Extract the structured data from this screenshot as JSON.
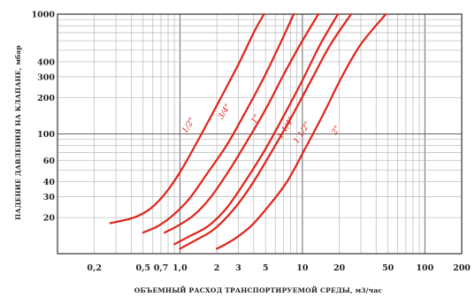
{
  "chart_data": {
    "type": "line",
    "title": "",
    "xlabel": "ОБЪЕМНЫЙ РАСХОД ТРАНСПОРТИРУЕМОЙ СРЕДЫ, м3/час",
    "ylabel": "ПАДЕНИЕ ДАВЛЕНИЯ НА КЛАПАНЕ, мбар",
    "x_scale": "log",
    "y_scale": "log",
    "xlim": [
      0.1,
      200
    ],
    "ylim": [
      10,
      1000
    ],
    "grid": true,
    "x_ticks": [
      "0,2",
      "0,5",
      "0,7",
      "1,0",
      "2",
      "3",
      "5",
      "10",
      "20",
      "50",
      "100",
      "200"
    ],
    "x_tick_values": [
      0.2,
      0.5,
      0.7,
      1.0,
      2,
      3,
      5,
      10,
      20,
      50,
      100,
      200
    ],
    "y_ticks": [
      "1000",
      "400",
      "300",
      "200",
      "100",
      "60",
      "40",
      "30",
      "20"
    ],
    "y_tick_values": [
      1000,
      400,
      300,
      200,
      100,
      60,
      40,
      30,
      20
    ],
    "color": "#e0231b",
    "series": [
      {
        "name": "1/2\"",
        "label_at": [
          1.22,
          115
        ],
        "x": [
          0.27,
          0.42,
          0.58,
          0.78,
          1.05,
          1.5,
          2.1,
          3.0,
          4.0,
          4.85
        ],
        "y": [
          18,
          20,
          24,
          33,
          52,
          100,
          190,
          380,
          700,
          1000
        ]
      },
      {
        "name": "3/4\"",
        "label_at": [
          2.4,
          150
        ],
        "x": [
          0.5,
          0.66,
          0.88,
          1.2,
          1.7,
          2.4,
          3.4,
          4.8,
          6.6,
          8.5
        ],
        "y": [
          15,
          17,
          21,
          29,
          48,
          80,
          150,
          290,
          570,
          1000
        ]
      },
      {
        "name": "1\"",
        "label_at": [
          4.3,
          130
        ],
        "x": [
          0.75,
          0.95,
          1.3,
          1.8,
          2.6,
          3.6,
          5.0,
          7.0,
          9.8,
          13.5
        ],
        "y": [
          15,
          17,
          21,
          30,
          52,
          90,
          160,
          310,
          580,
          1000
        ]
      },
      {
        "name": "1 1/4\"",
        "label_at": [
          7.6,
          110
        ],
        "x": [
          0.9,
          1.2,
          1.7,
          2.4,
          3.4,
          5.0,
          7.0,
          10.0,
          14.0,
          19.5
        ],
        "y": [
          12,
          14,
          17,
          24,
          40,
          75,
          140,
          280,
          560,
          1000
        ]
      },
      {
        "name": "1 1/2\"",
        "label_at": [
          10.3,
          100
        ],
        "x": [
          1.0,
          1.35,
          1.9,
          2.8,
          4.0,
          6.0,
          8.5,
          12.0,
          17.0,
          25.0
        ],
        "y": [
          11,
          13,
          16,
          24,
          40,
          80,
          150,
          290,
          560,
          1000
        ]
      },
      {
        "name": "2\"",
        "label_at": [
          19.5,
          105
        ],
        "x": [
          2.0,
          2.7,
          3.8,
          5.3,
          7.5,
          10.5,
          15.0,
          21.0,
          30.0,
          48.0
        ],
        "y": [
          11,
          13,
          17,
          25,
          40,
          75,
          150,
          300,
          560,
          1000
        ]
      }
    ]
  }
}
